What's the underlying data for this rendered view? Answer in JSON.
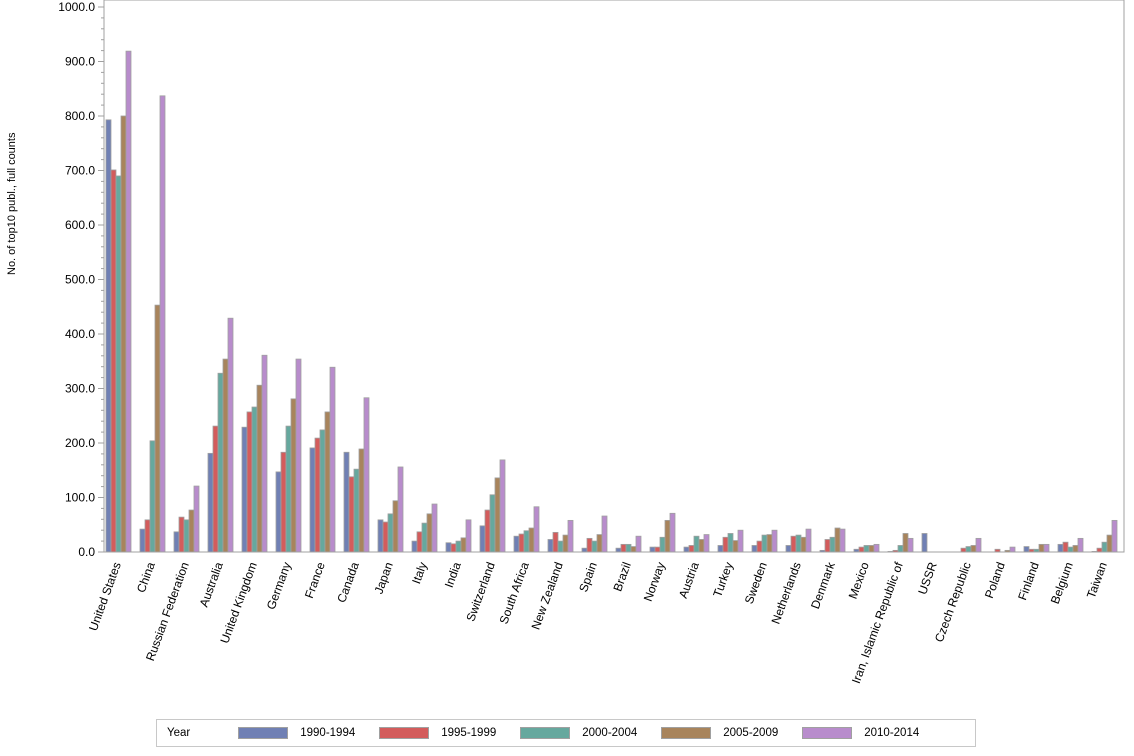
{
  "chart_data": {
    "type": "bar",
    "title": "",
    "xlabel": "",
    "ylabel": "No. of top10 publ., full counts",
    "ylim": [
      0,
      1000
    ],
    "y_ticks": [
      "0.0",
      "100.0",
      "200.0",
      "300.0",
      "400.0",
      "500.0",
      "600.0",
      "700.0",
      "800.0",
      "900.0",
      "1000.0"
    ],
    "grid": false,
    "legend_position": "bottom",
    "legend_title": "Year",
    "categories": [
      "United States",
      "China",
      "Russian Federation",
      "Australia",
      "United Kingdom",
      "Germany",
      "France",
      "Canada",
      "Japan",
      "Italy",
      "India",
      "Switzerland",
      "South Africa",
      "New Zealand",
      "Spain",
      "Brazil",
      "Norway",
      "Austria",
      "Turkey",
      "Sweden",
      "Netherlands",
      "Denmark",
      "Mexico",
      "Iran, Islamic Republic of",
      "USSR",
      "Czech Republic",
      "Poland",
      "Finland",
      "Belgium",
      "Taiwan"
    ],
    "series": [
      {
        "name": "1990-1994",
        "color": "#7080b4",
        "values": [
          793,
          42,
          37,
          181,
          229,
          147,
          191,
          183,
          59,
          20,
          17,
          48,
          29,
          23,
          7,
          7,
          9,
          9,
          12,
          12,
          12,
          3,
          5,
          1,
          34,
          0,
          0,
          10,
          14,
          1
        ]
      },
      {
        "name": "1995-1999",
        "color": "#d35c5c",
        "values": [
          701,
          59,
          64,
          231,
          257,
          183,
          209,
          138,
          55,
          37,
          15,
          77,
          33,
          36,
          25,
          14,
          9,
          12,
          27,
          20,
          29,
          23,
          9,
          3,
          0,
          7,
          5,
          5,
          18,
          7
        ]
      },
      {
        "name": "2000-2004",
        "color": "#66a89e",
        "values": [
          690,
          204,
          59,
          328,
          266,
          231,
          224,
          152,
          70,
          53,
          20,
          105,
          39,
          20,
          20,
          14,
          27,
          29,
          34,
          31,
          31,
          27,
          12,
          12,
          0,
          10,
          0,
          5,
          9,
          18
        ]
      },
      {
        "name": "2005-2009",
        "color": "#a8845c",
        "values": [
          800,
          453,
          77,
          354,
          306,
          281,
          257,
          189,
          94,
          70,
          26,
          136,
          44,
          31,
          32,
          10,
          58,
          23,
          21,
          32,
          27,
          44,
          12,
          34,
          0,
          12,
          3,
          14,
          12,
          31
        ]
      },
      {
        "name": "2010-2014",
        "color": "#b88ccc",
        "values": [
          919,
          837,
          121,
          429,
          361,
          354,
          339,
          283,
          156,
          88,
          59,
          169,
          83,
          58,
          66,
          29,
          71,
          32,
          40,
          40,
          42,
          42,
          14,
          25,
          0,
          25,
          9,
          14,
          25,
          58
        ]
      }
    ]
  }
}
